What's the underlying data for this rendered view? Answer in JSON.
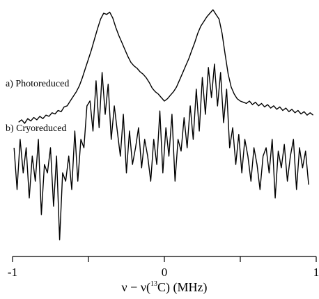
{
  "chart_data": {
    "type": "line",
    "title": "",
    "xlabel": {
      "prefix": "ν − ν(",
      "superscript": "13",
      "suffix": "C) (MHz)"
    },
    "ylabel": "",
    "xlim": [
      -1,
      1
    ],
    "xticks": [
      -1,
      -0.5,
      0,
      0.5,
      1
    ],
    "xtick_labels": [
      "-1",
      "",
      "0",
      "",
      "1"
    ],
    "grid": false,
    "series": [
      {
        "name": "a) Photoreduced",
        "x": [
          -0.96,
          -0.94,
          -0.92,
          -0.9,
          -0.88,
          -0.86,
          -0.84,
          -0.82,
          -0.8,
          -0.78,
          -0.76,
          -0.74,
          -0.72,
          -0.7,
          -0.68,
          -0.66,
          -0.64,
          -0.62,
          -0.6,
          -0.58,
          -0.56,
          -0.54,
          -0.52,
          -0.5,
          -0.48,
          -0.46,
          -0.44,
          -0.42,
          -0.4,
          -0.38,
          -0.36,
          -0.34,
          -0.32,
          -0.3,
          -0.28,
          -0.26,
          -0.24,
          -0.22,
          -0.2,
          -0.18,
          -0.16,
          -0.14,
          -0.12,
          -0.1,
          -0.08,
          -0.06,
          -0.04,
          -0.02,
          0,
          0.02,
          0.04,
          0.06,
          0.08,
          0.1,
          0.12,
          0.14,
          0.16,
          0.18,
          0.2,
          0.22,
          0.24,
          0.26,
          0.28,
          0.3,
          0.32,
          0.34,
          0.36,
          0.38,
          0.4,
          0.42,
          0.44,
          0.46,
          0.48,
          0.5,
          0.52,
          0.54,
          0.56,
          0.58,
          0.6,
          0.62,
          0.64,
          0.66,
          0.68,
          0.7,
          0.72,
          0.74,
          0.76,
          0.78,
          0.8,
          0.82,
          0.84,
          0.86,
          0.88,
          0.9,
          0.92,
          0.94,
          0.96,
          0.98
        ],
        "y": [
          0.04,
          0.06,
          0.03,
          0.07,
          0.05,
          0.08,
          0.06,
          0.09,
          0.07,
          0.1,
          0.09,
          0.12,
          0.11,
          0.14,
          0.13,
          0.17,
          0.18,
          0.22,
          0.26,
          0.3,
          0.35,
          0.42,
          0.5,
          0.58,
          0.66,
          0.75,
          0.84,
          0.92,
          0.97,
          0.96,
          0.98,
          0.93,
          0.85,
          0.78,
          0.72,
          0.66,
          0.6,
          0.55,
          0.52,
          0.5,
          0.47,
          0.45,
          0.42,
          0.38,
          0.33,
          0.3,
          0.28,
          0.25,
          0.22,
          0.24,
          0.27,
          0.3,
          0.34,
          0.4,
          0.46,
          0.52,
          0.58,
          0.65,
          0.72,
          0.8,
          0.86,
          0.9,
          0.94,
          0.97,
          1.0,
          0.96,
          0.92,
          0.8,
          0.62,
          0.45,
          0.34,
          0.28,
          0.24,
          0.22,
          0.21,
          0.2,
          0.22,
          0.19,
          0.21,
          0.18,
          0.2,
          0.17,
          0.19,
          0.16,
          0.18,
          0.15,
          0.17,
          0.14,
          0.16,
          0.13,
          0.15,
          0.12,
          0.14,
          0.11,
          0.13,
          0.1,
          0.12,
          0.1
        ]
      },
      {
        "name": "b) Cryoreduced",
        "x": [
          -0.99,
          -0.97,
          -0.95,
          -0.93,
          -0.91,
          -0.89,
          -0.87,
          -0.85,
          -0.83,
          -0.81,
          -0.79,
          -0.77,
          -0.75,
          -0.73,
          -0.71,
          -0.69,
          -0.67,
          -0.65,
          -0.63,
          -0.61,
          -0.59,
          -0.57,
          -0.55,
          -0.53,
          -0.51,
          -0.49,
          -0.47,
          -0.45,
          -0.43,
          -0.41,
          -0.39,
          -0.37,
          -0.35,
          -0.33,
          -0.31,
          -0.29,
          -0.27,
          -0.25,
          -0.23,
          -0.21,
          -0.19,
          -0.17,
          -0.15,
          -0.13,
          -0.11,
          -0.09,
          -0.07,
          -0.05,
          -0.03,
          -0.01,
          0.01,
          0.03,
          0.05,
          0.07,
          0.09,
          0.11,
          0.13,
          0.15,
          0.17,
          0.19,
          0.21,
          0.23,
          0.25,
          0.27,
          0.29,
          0.31,
          0.33,
          0.35,
          0.37,
          0.39,
          0.41,
          0.43,
          0.45,
          0.47,
          0.49,
          0.51,
          0.53,
          0.55,
          0.57,
          0.59,
          0.61,
          0.63,
          0.65,
          0.67,
          0.69,
          0.71,
          0.73,
          0.75,
          0.77,
          0.79,
          0.81,
          0.83,
          0.85,
          0.87,
          0.89,
          0.91,
          0.93,
          0.95
        ],
        "y": [
          0.5,
          0.25,
          0.55,
          0.35,
          0.5,
          0.2,
          0.45,
          0.3,
          0.55,
          0.1,
          0.4,
          0.35,
          0.5,
          0.15,
          0.45,
          -0.05,
          0.35,
          0.3,
          0.45,
          0.25,
          0.6,
          0.3,
          0.55,
          0.5,
          0.75,
          0.78,
          0.6,
          0.9,
          0.62,
          0.95,
          0.7,
          0.88,
          0.55,
          0.75,
          0.6,
          0.45,
          0.7,
          0.35,
          0.6,
          0.4,
          0.5,
          0.62,
          0.38,
          0.55,
          0.45,
          0.3,
          0.55,
          0.4,
          0.72,
          0.35,
          0.62,
          0.45,
          0.7,
          0.3,
          0.55,
          0.48,
          0.68,
          0.5,
          0.75,
          0.55,
          0.85,
          0.6,
          0.92,
          0.7,
          0.98,
          0.8,
          1.0,
          0.75,
          0.95,
          0.65,
          0.85,
          0.5,
          0.62,
          0.4,
          0.58,
          0.35,
          0.55,
          0.45,
          0.3,
          0.5,
          0.4,
          0.25,
          0.45,
          0.5,
          0.35,
          0.55,
          0.2,
          0.48,
          0.38,
          0.52,
          0.3,
          0.45,
          0.55,
          0.25,
          0.5,
          0.38,
          0.48,
          0.28
        ]
      }
    ]
  }
}
